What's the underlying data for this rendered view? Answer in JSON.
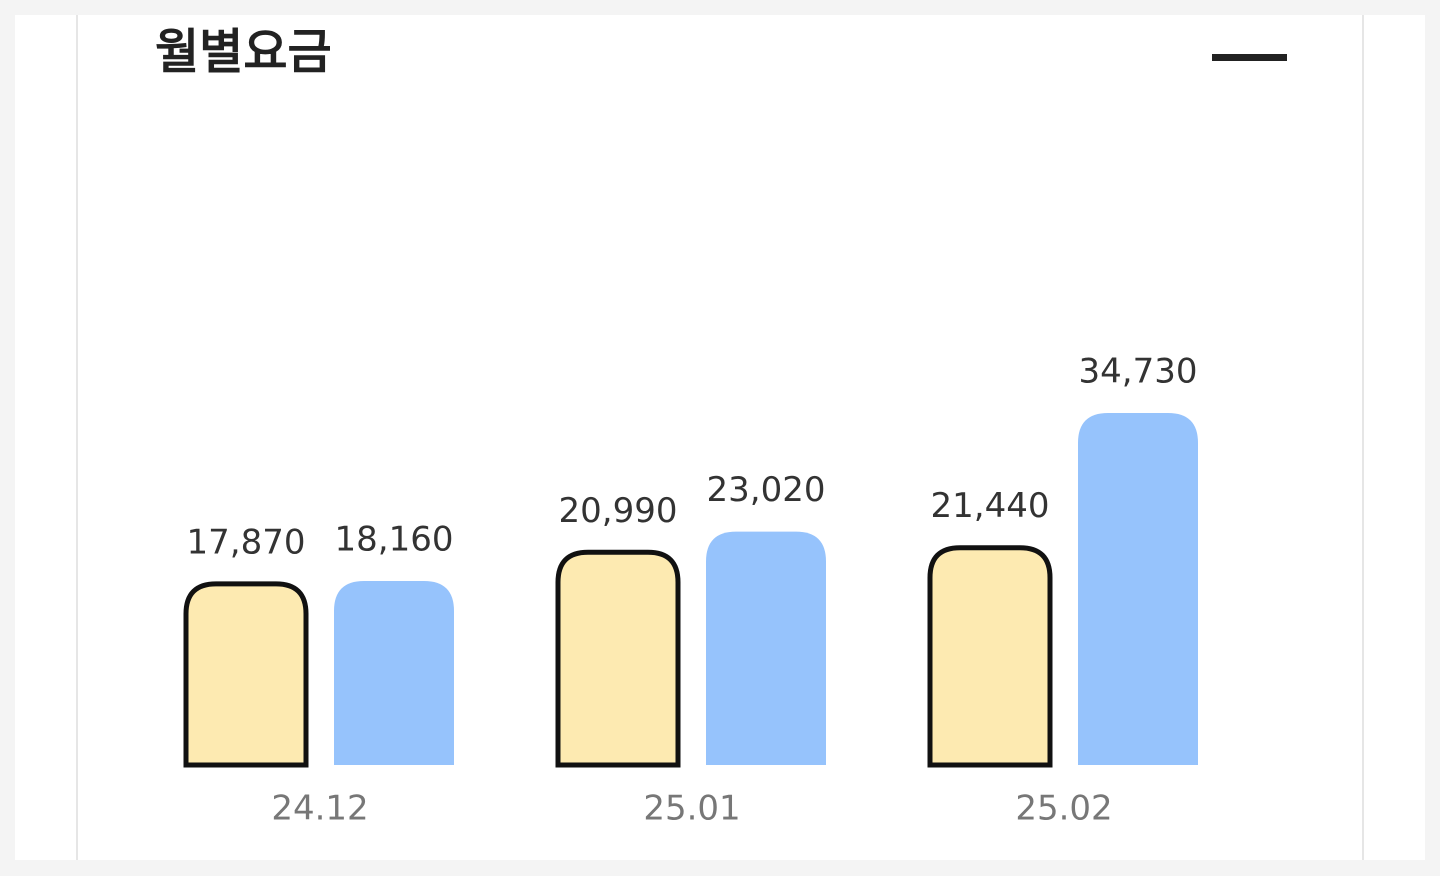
{
  "chart_data": {
    "type": "bar",
    "title": "월별요금",
    "categories": [
      "24.12",
      "25.01",
      "25.02"
    ],
    "series": [
      {
        "color": "#fdeab1",
        "values": [
          17870,
          20990,
          21440
        ],
        "value_labels": [
          "17,870",
          "20,990",
          "21,440"
        ]
      },
      {
        "color": "#96c3fc",
        "values": [
          18160,
          23020,
          34730
        ],
        "value_labels": [
          "18,160",
          "23,020",
          "34,730"
        ]
      }
    ]
  }
}
